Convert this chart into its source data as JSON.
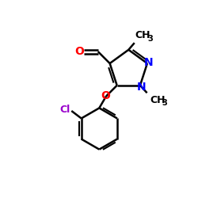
{
  "background": "#ffffff",
  "bond_color": "#000000",
  "bond_width": 1.8,
  "n_color": "#0000ff",
  "o_color": "#ff0000",
  "cl_color": "#9900cc",
  "text_color": "#000000",
  "figsize": [
    2.5,
    2.5
  ],
  "dpi": 100,
  "font_size": 9,
  "subscript_size": 7,
  "xlim": [
    0,
    10
  ],
  "ylim": [
    0,
    10
  ]
}
